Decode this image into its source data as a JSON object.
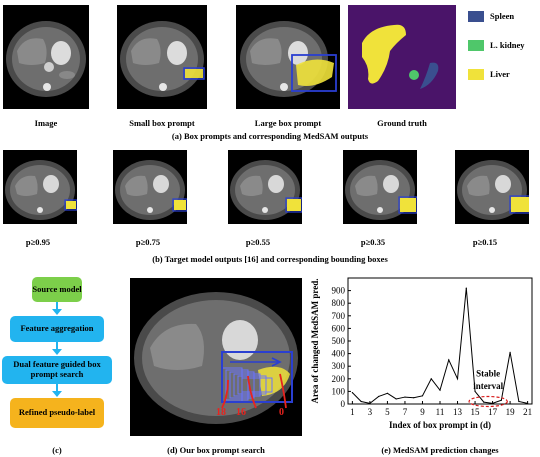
{
  "row_a": {
    "labels": [
      "Image",
      "Small box prompt",
      "Large box prompt",
      "Ground truth"
    ],
    "caption": "(a) Box prompts and corresponding MedSAM outputs",
    "legend": [
      {
        "label": "Spleen",
        "color": "#3a4f8f"
      },
      {
        "label": "L. kidney",
        "color": "#4fc76a"
      },
      {
        "label": "Liver",
        "color": "#f0e23a"
      }
    ],
    "gt_background": "#4a1469"
  },
  "row_b": {
    "labels": [
      "p≥0.95",
      "p≥0.75",
      "p≥0.55",
      "p≥0.35",
      "p≥0.15"
    ],
    "caption": "(b) Target model outputs [16] and corresponding bounding boxes"
  },
  "flow": {
    "steps": [
      "Source model",
      "Feature aggregation",
      "Dual feature guided box prompt search",
      "Refined pseudo-label"
    ],
    "caption": "(c)"
  },
  "search": {
    "caption": "(d) Our box prompt search",
    "marks": [
      "18",
      "16",
      "0"
    ]
  },
  "chart_data": {
    "type": "line",
    "xlabel": "Index of box prompt in (d)",
    "ylabel": "Area of changed MedSAM pred.",
    "caption": "(e) MedSAM prediction changes",
    "annotation": "Stable interval",
    "x": [
      1,
      2,
      3,
      4,
      5,
      6,
      7,
      8,
      9,
      10,
      11,
      12,
      13,
      14,
      15,
      16,
      17,
      18,
      19,
      20,
      21
    ],
    "values": [
      90,
      20,
      5,
      60,
      85,
      40,
      55,
      50,
      65,
      200,
      110,
      350,
      200,
      920,
      100,
      15,
      5,
      30,
      410,
      20,
      5
    ],
    "xticks": [
      "1",
      "3",
      "5",
      "7",
      "9",
      "11",
      "13",
      "15",
      "17",
      "19",
      "21"
    ],
    "yticks": [
      "0",
      "100",
      "200",
      "300",
      "400",
      "500",
      "600",
      "700",
      "800",
      "900"
    ],
    "ylim": [
      0,
      1000
    ],
    "xlim": [
      0.5,
      21.5
    ],
    "grid": false,
    "line_color": "#000000",
    "annotation_color": "#d81b1b"
  }
}
